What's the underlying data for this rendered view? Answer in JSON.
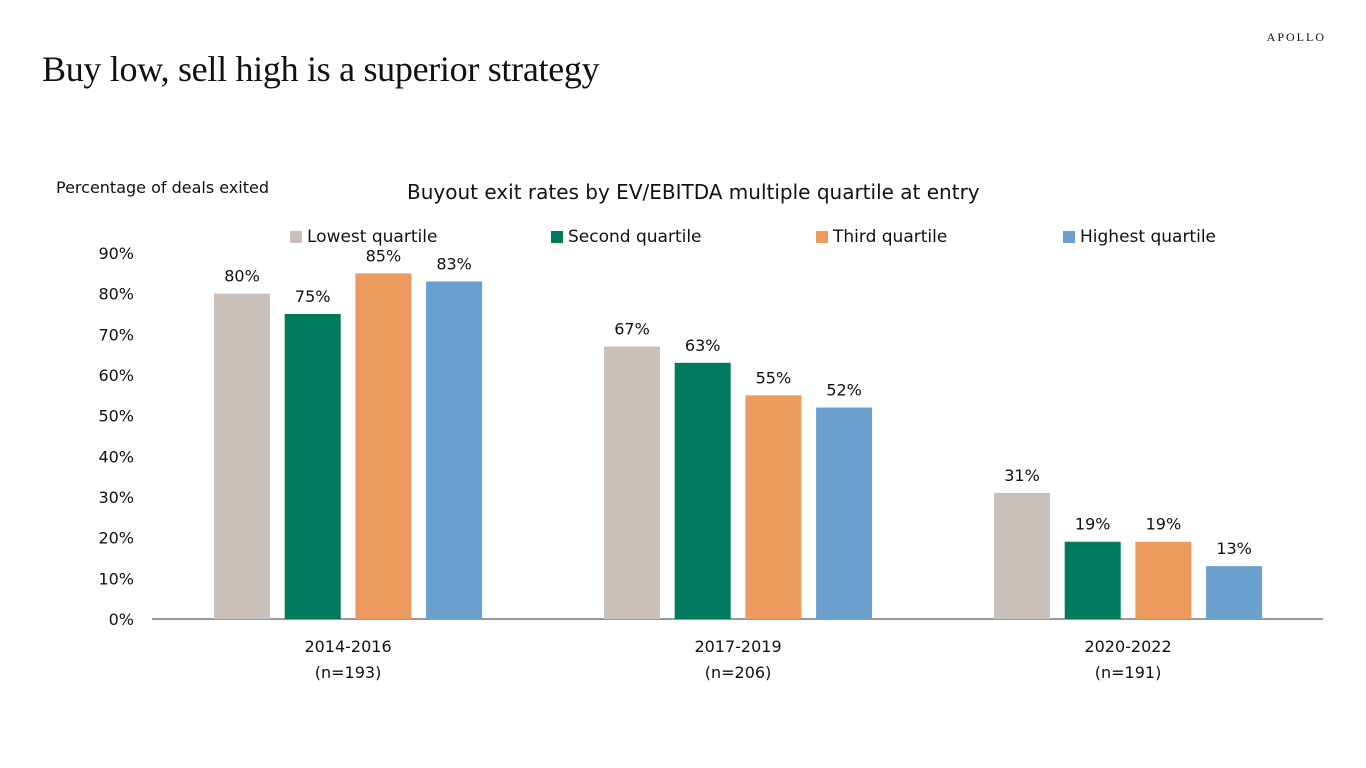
{
  "brand": "APOLLO",
  "page_title": "Buy low, sell high is a superior strategy",
  "chart_data": {
    "type": "bar",
    "title": "Buyout exit rates by EV/EBITDA multiple quartile at entry",
    "ylabel": "Percentage of deals exited",
    "xlabel": "",
    "ylim": [
      0,
      90
    ],
    "y_ticks": [
      "0%",
      "10%",
      "20%",
      "30%",
      "40%",
      "50%",
      "60%",
      "70%",
      "80%",
      "90%"
    ],
    "categories": [
      "2014-2016",
      "2017-2019",
      "2020-2022"
    ],
    "category_sublabels": [
      "(n=193)",
      "(n=206)",
      "(n=191)"
    ],
    "series": [
      {
        "name": "Lowest quartile",
        "color": "#c9c1b9",
        "values": [
          80,
          67,
          31
        ],
        "labels": [
          "80%",
          "67%",
          "31%"
        ]
      },
      {
        "name": "Second quartile",
        "color": "#007a5e",
        "values": [
          75,
          63,
          19
        ],
        "labels": [
          "75%",
          "63%",
          "19%"
        ]
      },
      {
        "name": "Third quartile",
        "color": "#ec9a5e",
        "values": [
          85,
          55,
          19
        ],
        "labels": [
          "85%",
          "55%",
          "19%"
        ]
      },
      {
        "name": "Highest quartile",
        "color": "#6a9fce",
        "values": [
          83,
          52,
          13
        ],
        "labels": [
          "83%",
          "52%",
          "13%"
        ]
      }
    ],
    "grid": false,
    "legend_position": "top"
  }
}
